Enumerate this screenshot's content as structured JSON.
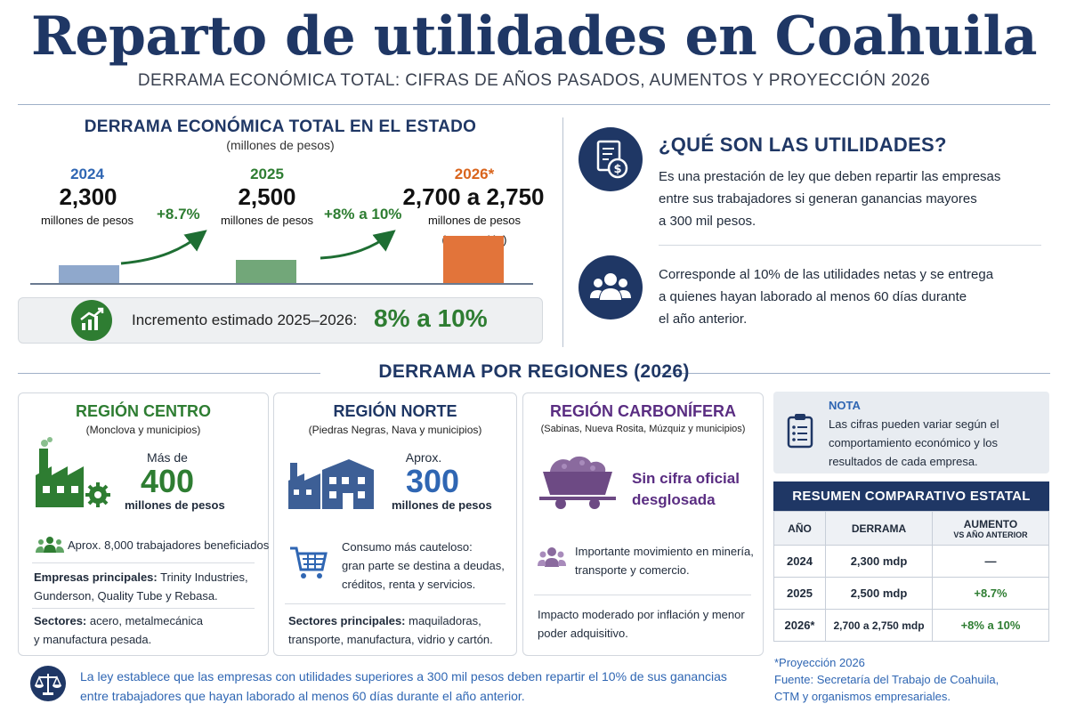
{
  "header": {
    "title": "Reparto de utilidades en Coahuila",
    "subtitle": "DERRAMA ECONÓMICA TOTAL: CIFRAS DE AÑOS PASADOS, AUMENTOS Y PROYECCIÓN 2026"
  },
  "chart_data": {
    "type": "bar",
    "title": "DERRAMA ECONÓMICA TOTAL EN EL ESTADO",
    "subtitle": "(millones de pesos)",
    "categories": [
      "2024",
      "2025",
      "2026*"
    ],
    "values": [
      2300,
      2500,
      2750
    ],
    "value_labels": [
      "2,300",
      "2,500",
      "2,700 a 2,750"
    ],
    "unit_labels": [
      "millones de pesos",
      "millones de pesos",
      "millones de pesos"
    ],
    "projection_note": "(Proyección)",
    "increases": [
      "+8.7%",
      "+8% a 10%"
    ],
    "colors": [
      "#8fa8cc",
      "#72a779",
      "#e2743a"
    ]
  },
  "increment": {
    "label": "Incremento estimado 2025–2026:",
    "value": "8% a 10%"
  },
  "info": {
    "title": "¿QUÉ SON LAS UTILIDADES?",
    "para1": [
      "Es una prestación de ley que deben repartir las empresas",
      "entre sus trabajadores si generan ganancias mayores",
      "a 300 mil pesos."
    ],
    "para2": [
      "Corresponde al 10% de las utilidades netas y se entrega",
      "a quienes hayan laborado al menos 60 días durante",
      "el año anterior."
    ],
    "icons": [
      "document-money-icon",
      "people-group-icon"
    ]
  },
  "regions": {
    "title": "DERRAMA POR REGIONES (2026)",
    "centro": {
      "name": "REGIÓN CENTRO",
      "sub": "(Monclova y municipios)",
      "pre": "Más de",
      "value": "400",
      "unit": "millones de pesos",
      "workers": "Aprox. 8,000 trabajadores beneficiados",
      "companies_label": "Empresas principales:",
      "companies": " Trinity Industries,",
      "companies2": "Gunderson, Quality Tube y Rebasa.",
      "sectors_label": "Sectores:",
      "sectors": " acero, metalmecánica",
      "sectors2": "y manufactura pesada."
    },
    "norte": {
      "name": "REGIÓN NORTE",
      "sub": "(Piedras Negras, Nava y municipios)",
      "pre": "Aprox.",
      "value": "300",
      "unit": "millones de pesos",
      "consumo": [
        "Consumo más cauteloso:",
        "gran parte se destina a deudas,",
        "créditos, renta y servicios."
      ],
      "sectors_label": "Sectores principales:",
      "sectors": " maquiladoras,",
      "sectors2": "transporte, manufactura, vidrio y cartón."
    },
    "carbonifera": {
      "name": "REGIÓN CARBONÍFERA",
      "sub": "(Sabinas, Nueva Rosita, Múzquiz y municipios)",
      "value_text": [
        "Sin cifra oficial",
        "desglosada"
      ],
      "movement": [
        "Importante movimiento en minería,",
        "transporte y comercio."
      ],
      "impact": [
        "Impacto moderado por inflación y menor",
        "poder adquisitivo."
      ]
    }
  },
  "nota": {
    "title": "NOTA",
    "text": [
      "Las cifras pueden variar según el",
      "comportamiento económico y los",
      "resultados de cada empresa."
    ]
  },
  "summary": {
    "title": "RESUMEN COMPARATIVO ESTATAL",
    "headers": [
      "AÑO",
      "DERRAMA",
      "AUMENTO",
      "VS AÑO ANTERIOR"
    ],
    "rows": [
      [
        "2024",
        "2,300 mdp",
        "—"
      ],
      [
        "2025",
        "2,500 mdp",
        "+8.7%"
      ],
      [
        "2026*",
        "2,700 a 2,750 mdp",
        "+8% a 10%"
      ]
    ]
  },
  "footer": {
    "text": [
      "La ley establece que las empresas con utilidades superiores a 300 mil pesos deben repartir el 10% de sus ganancias",
      "entre trabajadores que hayan laborado al menos 60 días durante el año anterior."
    ],
    "notes": [
      "*Proyección 2026",
      "Fuente: Secretaría del Trabajo de Coahuila,",
      "CTM y organismos empresariales."
    ]
  }
}
